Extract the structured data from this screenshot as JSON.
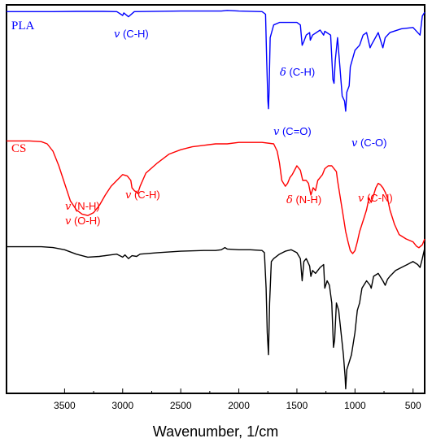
{
  "chart_data": {
    "type": "line",
    "xlabel": "Wavenumber, 1/cm",
    "ylabel": "",
    "x_reversed": true,
    "xlim": [
      4000,
      400
    ],
    "x_ticks": [
      3500,
      3000,
      2500,
      2000,
      1500,
      1000,
      500
    ],
    "grid": false,
    "series": [
      {
        "name": "PLA",
        "color": "#0000ff",
        "points": [
          [
            4000,
            0.985
          ],
          [
            3800,
            0.985
          ],
          [
            3600,
            0.985
          ],
          [
            3400,
            0.987
          ],
          [
            3200,
            0.988
          ],
          [
            3050,
            0.985
          ],
          [
            3000,
            0.955
          ],
          [
            2990,
            0.975
          ],
          [
            2950,
            0.945
          ],
          [
            2900,
            0.985
          ],
          [
            2500,
            0.99
          ],
          [
            2300,
            0.99
          ],
          [
            2150,
            0.99
          ],
          [
            2100,
            0.995
          ],
          [
            2000,
            0.99
          ],
          [
            1800,
            0.985
          ],
          [
            1770,
            0.965
          ],
          [
            1760,
            0.6
          ],
          [
            1750,
            0.28
          ],
          [
            1745,
            0.22
          ],
          [
            1740,
            0.35
          ],
          [
            1730,
            0.78
          ],
          [
            1700,
            0.88
          ],
          [
            1650,
            0.9
          ],
          [
            1600,
            0.9
          ],
          [
            1500,
            0.9
          ],
          [
            1470,
            0.88
          ],
          [
            1455,
            0.72
          ],
          [
            1440,
            0.75
          ],
          [
            1420,
            0.8
          ],
          [
            1390,
            0.82
          ],
          [
            1385,
            0.76
          ],
          [
            1365,
            0.8
          ],
          [
            1300,
            0.84
          ],
          [
            1270,
            0.8
          ],
          [
            1260,
            0.83
          ],
          [
            1210,
            0.8
          ],
          [
            1190,
            0.45
          ],
          [
            1180,
            0.42
          ],
          [
            1170,
            0.6
          ],
          [
            1150,
            0.78
          ],
          [
            1130,
            0.55
          ],
          [
            1110,
            0.32
          ],
          [
            1090,
            0.28
          ],
          [
            1080,
            0.2
          ],
          [
            1070,
            0.35
          ],
          [
            1050,
            0.4
          ],
          [
            1040,
            0.55
          ],
          [
            1000,
            0.68
          ],
          [
            960,
            0.72
          ],
          [
            930,
            0.8
          ],
          [
            900,
            0.82
          ],
          [
            870,
            0.7
          ],
          [
            860,
            0.72
          ],
          [
            800,
            0.82
          ],
          [
            760,
            0.7
          ],
          [
            740,
            0.78
          ],
          [
            700,
            0.82
          ],
          [
            600,
            0.85
          ],
          [
            500,
            0.86
          ],
          [
            440,
            0.8
          ],
          [
            420,
            0.95
          ],
          [
            400,
            0.98
          ]
        ]
      },
      {
        "name": "CS",
        "color": "#ff0000",
        "points": [
          [
            4000,
            0.97
          ],
          [
            3800,
            0.97
          ],
          [
            3700,
            0.965
          ],
          [
            3650,
            0.95
          ],
          [
            3600,
            0.9
          ],
          [
            3550,
            0.8
          ],
          [
            3500,
            0.68
          ],
          [
            3450,
            0.56
          ],
          [
            3400,
            0.5
          ],
          [
            3350,
            0.47
          ],
          [
            3300,
            0.46
          ],
          [
            3250,
            0.48
          ],
          [
            3200,
            0.53
          ],
          [
            3150,
            0.6
          ],
          [
            3100,
            0.66
          ],
          [
            3050,
            0.7
          ],
          [
            3000,
            0.74
          ],
          [
            2960,
            0.73
          ],
          [
            2930,
            0.7
          ],
          [
            2920,
            0.65
          ],
          [
            2900,
            0.63
          ],
          [
            2880,
            0.62
          ],
          [
            2870,
            0.61
          ],
          [
            2850,
            0.66
          ],
          [
            2800,
            0.75
          ],
          [
            2700,
            0.82
          ],
          [
            2600,
            0.88
          ],
          [
            2500,
            0.91
          ],
          [
            2400,
            0.93
          ],
          [
            2300,
            0.94
          ],
          [
            2200,
            0.95
          ],
          [
            2100,
            0.95
          ],
          [
            2000,
            0.96
          ],
          [
            1900,
            0.96
          ],
          [
            1800,
            0.96
          ],
          [
            1700,
            0.95
          ],
          [
            1670,
            0.9
          ],
          [
            1650,
            0.82
          ],
          [
            1630,
            0.7
          ],
          [
            1600,
            0.66
          ],
          [
            1580,
            0.68
          ],
          [
            1560,
            0.72
          ],
          [
            1540,
            0.74
          ],
          [
            1500,
            0.8
          ],
          [
            1470,
            0.77
          ],
          [
            1450,
            0.7
          ],
          [
            1420,
            0.7
          ],
          [
            1400,
            0.68
          ],
          [
            1380,
            0.6
          ],
          [
            1360,
            0.65
          ],
          [
            1340,
            0.63
          ],
          [
            1320,
            0.7
          ],
          [
            1300,
            0.72
          ],
          [
            1280,
            0.74
          ],
          [
            1260,
            0.78
          ],
          [
            1230,
            0.8
          ],
          [
            1200,
            0.8
          ],
          [
            1180,
            0.78
          ],
          [
            1160,
            0.76
          ],
          [
            1150,
            0.7
          ],
          [
            1120,
            0.55
          ],
          [
            1100,
            0.45
          ],
          [
            1080,
            0.35
          ],
          [
            1060,
            0.28
          ],
          [
            1040,
            0.22
          ],
          [
            1020,
            0.2
          ],
          [
            1000,
            0.22
          ],
          [
            980,
            0.28
          ],
          [
            960,
            0.35
          ],
          [
            940,
            0.4
          ],
          [
            920,
            0.45
          ],
          [
            900,
            0.5
          ],
          [
            880,
            0.58
          ],
          [
            860,
            0.55
          ],
          [
            840,
            0.6
          ],
          [
            820,
            0.65
          ],
          [
            800,
            0.68
          ],
          [
            780,
            0.67
          ],
          [
            760,
            0.65
          ],
          [
            740,
            0.62
          ],
          [
            720,
            0.58
          ],
          [
            700,
            0.5
          ],
          [
            660,
            0.4
          ],
          [
            620,
            0.33
          ],
          [
            560,
            0.3
          ],
          [
            500,
            0.28
          ],
          [
            470,
            0.25
          ],
          [
            450,
            0.24
          ],
          [
            420,
            0.26
          ],
          [
            400,
            0.3
          ]
        ]
      },
      {
        "name": "",
        "color": "#000000",
        "points": [
          [
            4000,
            0.98
          ],
          [
            3700,
            0.98
          ],
          [
            3600,
            0.975
          ],
          [
            3500,
            0.96
          ],
          [
            3400,
            0.93
          ],
          [
            3300,
            0.91
          ],
          [
            3200,
            0.915
          ],
          [
            3100,
            0.925
          ],
          [
            3050,
            0.93
          ],
          [
            3000,
            0.91
          ],
          [
            2980,
            0.925
          ],
          [
            2950,
            0.9
          ],
          [
            2920,
            0.92
          ],
          [
            2880,
            0.915
          ],
          [
            2850,
            0.93
          ],
          [
            2700,
            0.94
          ],
          [
            2500,
            0.95
          ],
          [
            2300,
            0.955
          ],
          [
            2200,
            0.955
          ],
          [
            2150,
            0.96
          ],
          [
            2120,
            0.975
          ],
          [
            2100,
            0.965
          ],
          [
            2000,
            0.96
          ],
          [
            1900,
            0.96
          ],
          [
            1800,
            0.955
          ],
          [
            1780,
            0.94
          ],
          [
            1765,
            0.7
          ],
          [
            1755,
            0.4
          ],
          [
            1745,
            0.25
          ],
          [
            1735,
            0.6
          ],
          [
            1720,
            0.88
          ],
          [
            1700,
            0.9
          ],
          [
            1650,
            0.93
          ],
          [
            1600,
            0.95
          ],
          [
            1550,
            0.96
          ],
          [
            1500,
            0.94
          ],
          [
            1470,
            0.9
          ],
          [
            1455,
            0.75
          ],
          [
            1440,
            0.88
          ],
          [
            1420,
            0.9
          ],
          [
            1390,
            0.85
          ],
          [
            1380,
            0.78
          ],
          [
            1365,
            0.82
          ],
          [
            1340,
            0.8
          ],
          [
            1300,
            0.84
          ],
          [
            1270,
            0.86
          ],
          [
            1260,
            0.7
          ],
          [
            1240,
            0.75
          ],
          [
            1220,
            0.72
          ],
          [
            1200,
            0.6
          ],
          [
            1185,
            0.3
          ],
          [
            1175,
            0.35
          ],
          [
            1160,
            0.6
          ],
          [
            1140,
            0.55
          ],
          [
            1120,
            0.4
          ],
          [
            1100,
            0.25
          ],
          [
            1085,
            0.1
          ],
          [
            1080,
            0.02
          ],
          [
            1070,
            0.15
          ],
          [
            1050,
            0.2
          ],
          [
            1030,
            0.25
          ],
          [
            1000,
            0.4
          ],
          [
            980,
            0.55
          ],
          [
            960,
            0.6
          ],
          [
            940,
            0.7
          ],
          [
            900,
            0.75
          ],
          [
            870,
            0.72
          ],
          [
            860,
            0.7
          ],
          [
            840,
            0.78
          ],
          [
            800,
            0.8
          ],
          [
            760,
            0.75
          ],
          [
            740,
            0.72
          ],
          [
            720,
            0.76
          ],
          [
            700,
            0.78
          ],
          [
            650,
            0.82
          ],
          [
            600,
            0.84
          ],
          [
            550,
            0.86
          ],
          [
            500,
            0.88
          ],
          [
            460,
            0.86
          ],
          [
            440,
            0.84
          ],
          [
            420,
            0.9
          ],
          [
            400,
            0.97
          ]
        ]
      }
    ],
    "annotations": [
      {
        "series": "PLA",
        "greek": "v",
        "text": "(C-H)"
      },
      {
        "series": "PLA",
        "greek": "δ",
        "text": "(C-H)"
      },
      {
        "series": "PLA",
        "greek": "v",
        "text": "(C=O)"
      },
      {
        "series": "PLA",
        "greek": "v",
        "text": "(C-O)"
      },
      {
        "series": "CS",
        "greek": "v",
        "text": "(N-H)"
      },
      {
        "series": "CS",
        "greek": "v",
        "text": "(O-H)"
      },
      {
        "series": "CS",
        "greek": "v",
        "text": "(C-H)"
      },
      {
        "series": "CS",
        "greek": "δ",
        "text": "(N-H)"
      },
      {
        "series": "CS",
        "greek": "v",
        "text": "(C-N)"
      }
    ]
  }
}
